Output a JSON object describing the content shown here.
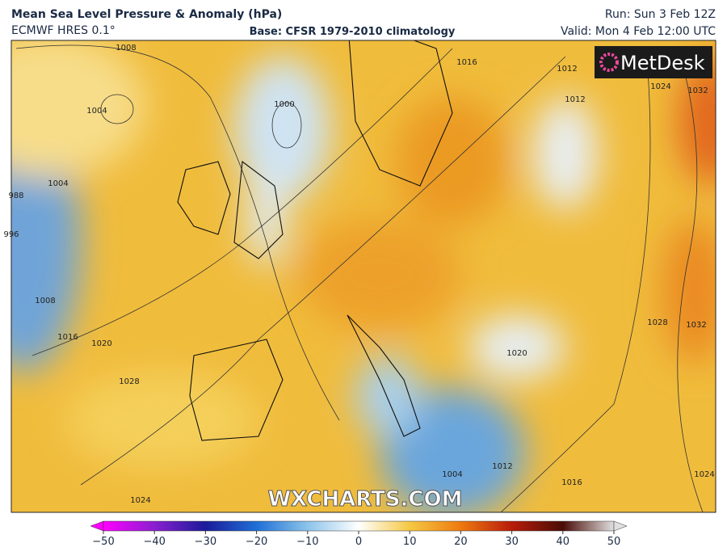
{
  "header": {
    "title": "Mean Sea Level Pressure & Anomaly (hPa)",
    "model": "ECMWF HRES 0.1°",
    "base": "Base: CFSR 1979-2010 climatology",
    "run": "Run: Sun 3 Feb 12Z",
    "valid": "Valid: Mon 4 Feb 12:00 UTC"
  },
  "map": {
    "logo": "MetDesk",
    "watermark": "WXCHARTS.COM",
    "contours": [
      "1008",
      "1004",
      "1000",
      "1004",
      "988",
      "996",
      "1008",
      "1016",
      "1020",
      "1028",
      "1024",
      "1016",
      "1012",
      "1012",
      "1024",
      "1032",
      "1028",
      "1032",
      "1020",
      "1012",
      "1016",
      "1024",
      "1004"
    ]
  },
  "colorbar": {
    "range": [
      -50,
      50
    ],
    "ticks": [
      {
        "value": -50,
        "label": "−50"
      },
      {
        "value": -40,
        "label": "−40"
      },
      {
        "value": -30,
        "label": "−30"
      },
      {
        "value": -20,
        "label": "−20"
      },
      {
        "value": -10,
        "label": "−10"
      },
      0,
      10,
      20,
      30,
      40,
      50
    ]
  }
}
